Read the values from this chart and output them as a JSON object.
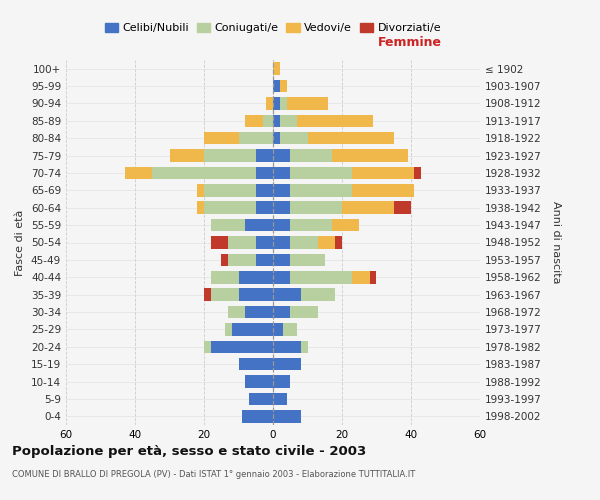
{
  "age_groups_bottom_to_top": [
    "0-4",
    "5-9",
    "10-14",
    "15-19",
    "20-24",
    "25-29",
    "30-34",
    "35-39",
    "40-44",
    "45-49",
    "50-54",
    "55-59",
    "60-64",
    "65-69",
    "70-74",
    "75-79",
    "80-84",
    "85-89",
    "90-94",
    "95-99",
    "100+"
  ],
  "birth_years_bottom_to_top": [
    "1998-2002",
    "1993-1997",
    "1988-1992",
    "1983-1987",
    "1978-1982",
    "1973-1977",
    "1968-1972",
    "1963-1967",
    "1958-1962",
    "1953-1957",
    "1948-1952",
    "1943-1947",
    "1938-1942",
    "1933-1937",
    "1928-1932",
    "1923-1927",
    "1918-1922",
    "1913-1917",
    "1908-1912",
    "1903-1907",
    "≤ 1902"
  ],
  "colors": {
    "celibi": "#4472c4",
    "coniugati": "#b8cfa0",
    "vedovi": "#f0b84a",
    "divorziati": "#c0392b"
  },
  "male_celibi": [
    9,
    7,
    8,
    10,
    18,
    12,
    8,
    10,
    10,
    5,
    5,
    8,
    5,
    5,
    5,
    5,
    0,
    0,
    0,
    0,
    0
  ],
  "male_coniugati": [
    0,
    0,
    0,
    0,
    2,
    2,
    5,
    8,
    8,
    8,
    8,
    10,
    15,
    15,
    30,
    15,
    10,
    3,
    0,
    0,
    0
  ],
  "male_vedovi": [
    0,
    0,
    0,
    0,
    0,
    0,
    0,
    0,
    0,
    0,
    0,
    0,
    2,
    2,
    8,
    10,
    10,
    5,
    2,
    0,
    0
  ],
  "male_divorziati": [
    0,
    0,
    0,
    0,
    0,
    0,
    0,
    2,
    0,
    2,
    5,
    0,
    0,
    0,
    0,
    0,
    0,
    0,
    0,
    0,
    0
  ],
  "female_celibi": [
    8,
    4,
    5,
    8,
    8,
    3,
    5,
    8,
    5,
    5,
    5,
    5,
    5,
    5,
    5,
    5,
    2,
    2,
    2,
    2,
    0
  ],
  "female_coniugati": [
    0,
    0,
    0,
    0,
    2,
    4,
    8,
    10,
    18,
    10,
    8,
    12,
    15,
    18,
    18,
    12,
    8,
    5,
    2,
    0,
    0
  ],
  "female_vedovi": [
    0,
    0,
    0,
    0,
    0,
    0,
    0,
    0,
    5,
    0,
    5,
    8,
    15,
    18,
    18,
    22,
    25,
    22,
    12,
    2,
    2
  ],
  "female_divorziati": [
    0,
    0,
    0,
    0,
    0,
    0,
    0,
    0,
    2,
    0,
    2,
    0,
    5,
    0,
    2,
    0,
    0,
    0,
    0,
    0,
    0
  ],
  "xlim": 60,
  "title": "Popolazione per età, sesso e stato civile - 2003",
  "subtitle": "COMUNE DI BRALLO DI PREGOLA (PV) - Dati ISTAT 1° gennaio 2003 - Elaborazione TUTTITALIA.IT",
  "xlabel_right": "Femmine",
  "ylabel_left": "Fasce di età",
  "ylabel_right": "Anni di nascita",
  "bg_color": "#f5f5f5",
  "grid_color": "#cccccc",
  "legend_labels": [
    "Celibi/Nubili",
    "Coniugati/e",
    "Vedovi/e",
    "Divorziati/e"
  ]
}
